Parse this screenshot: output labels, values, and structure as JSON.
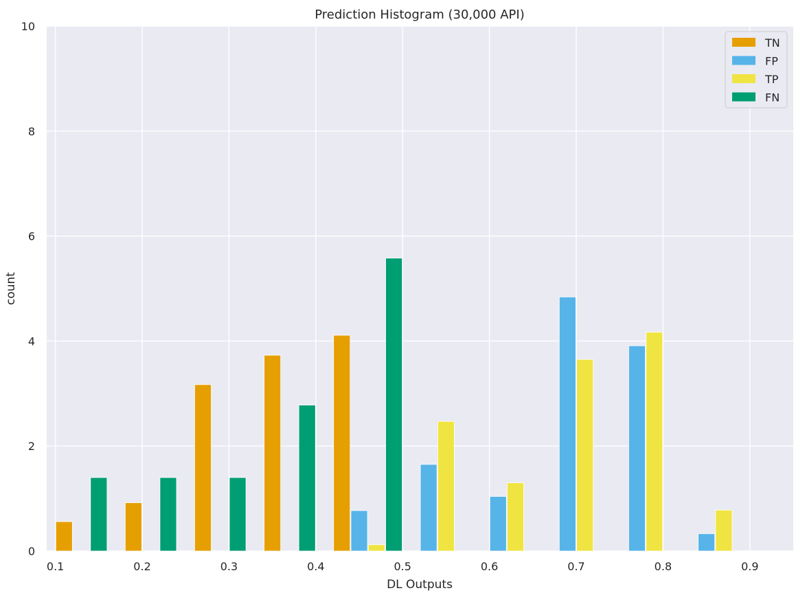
{
  "chart_data": {
    "type": "bar",
    "title": "Prediction Histogram (30,000 API)",
    "xlabel": "DL Outputs",
    "ylabel": "count",
    "xlim": [
      0.09,
      0.95
    ],
    "ylim": [
      0,
      10
    ],
    "xticks": [
      "0.1",
      "0.2",
      "0.3",
      "0.4",
      "0.5",
      "0.6",
      "0.7",
      "0.8",
      "0.9"
    ],
    "xtick_values": [
      0.1,
      0.2,
      0.3,
      0.4,
      0.5,
      0.6,
      0.7,
      0.8,
      0.9
    ],
    "yticks": [
      "0",
      "2",
      "4",
      "6",
      "8",
      "10"
    ],
    "ytick_values": [
      0,
      2,
      4,
      6,
      8,
      10
    ],
    "grid": true,
    "legend_position": "top-right",
    "bin_edges": [
      0.1,
      0.18,
      0.26,
      0.34,
      0.42,
      0.5,
      0.58,
      0.66,
      0.74,
      0.82,
      0.9
    ],
    "series": [
      {
        "name": "TN",
        "color": "#E69F00",
        "values": [
          0.56,
          0.92,
          3.17,
          3.73,
          4.11,
          0,
          0,
          0,
          0,
          0
        ]
      },
      {
        "name": "FP",
        "color": "#56B4E9",
        "values": [
          0,
          0,
          0,
          0,
          0.77,
          1.65,
          1.04,
          4.84,
          3.91,
          0.33
        ]
      },
      {
        "name": "TP",
        "color": "#F0E442",
        "values": [
          0,
          0,
          0,
          0,
          0.12,
          2.47,
          1.3,
          3.65,
          4.17,
          0.78
        ]
      },
      {
        "name": "FN",
        "color": "#009E73",
        "values": [
          1.4,
          1.4,
          1.4,
          2.78,
          5.58,
          0,
          0,
          0,
          0,
          0
        ]
      }
    ],
    "bars": [
      {
        "series": 0,
        "bin": 0,
        "slot": 0
      },
      {
        "series": 3,
        "bin": 0,
        "slot": 2
      },
      {
        "series": 0,
        "bin": 1,
        "slot": 0
      },
      {
        "series": 3,
        "bin": 1,
        "slot": 2
      },
      {
        "series": 0,
        "bin": 2,
        "slot": 0
      },
      {
        "series": 3,
        "bin": 2,
        "slot": 2
      },
      {
        "series": 0,
        "bin": 3,
        "slot": 0
      },
      {
        "series": 3,
        "bin": 3,
        "slot": 2
      },
      {
        "series": 0,
        "bin": 4,
        "slot": 0
      },
      {
        "series": 1,
        "bin": 4,
        "slot": 1
      },
      {
        "series": 2,
        "bin": 4,
        "slot": 2
      },
      {
        "series": 3,
        "bin": 4,
        "slot": 3
      },
      {
        "series": 1,
        "bin": 5,
        "slot": 1
      },
      {
        "series": 2,
        "bin": 5,
        "slot": 2
      },
      {
        "series": 1,
        "bin": 6,
        "slot": 1
      },
      {
        "series": 2,
        "bin": 6,
        "slot": 2
      },
      {
        "series": 1,
        "bin": 7,
        "slot": 1
      },
      {
        "series": 2,
        "bin": 7,
        "slot": 2
      },
      {
        "series": 1,
        "bin": 8,
        "slot": 1
      },
      {
        "series": 2,
        "bin": 8,
        "slot": 2
      },
      {
        "series": 1,
        "bin": 9,
        "slot": 1
      },
      {
        "series": 2,
        "bin": 9,
        "slot": 2
      }
    ]
  }
}
